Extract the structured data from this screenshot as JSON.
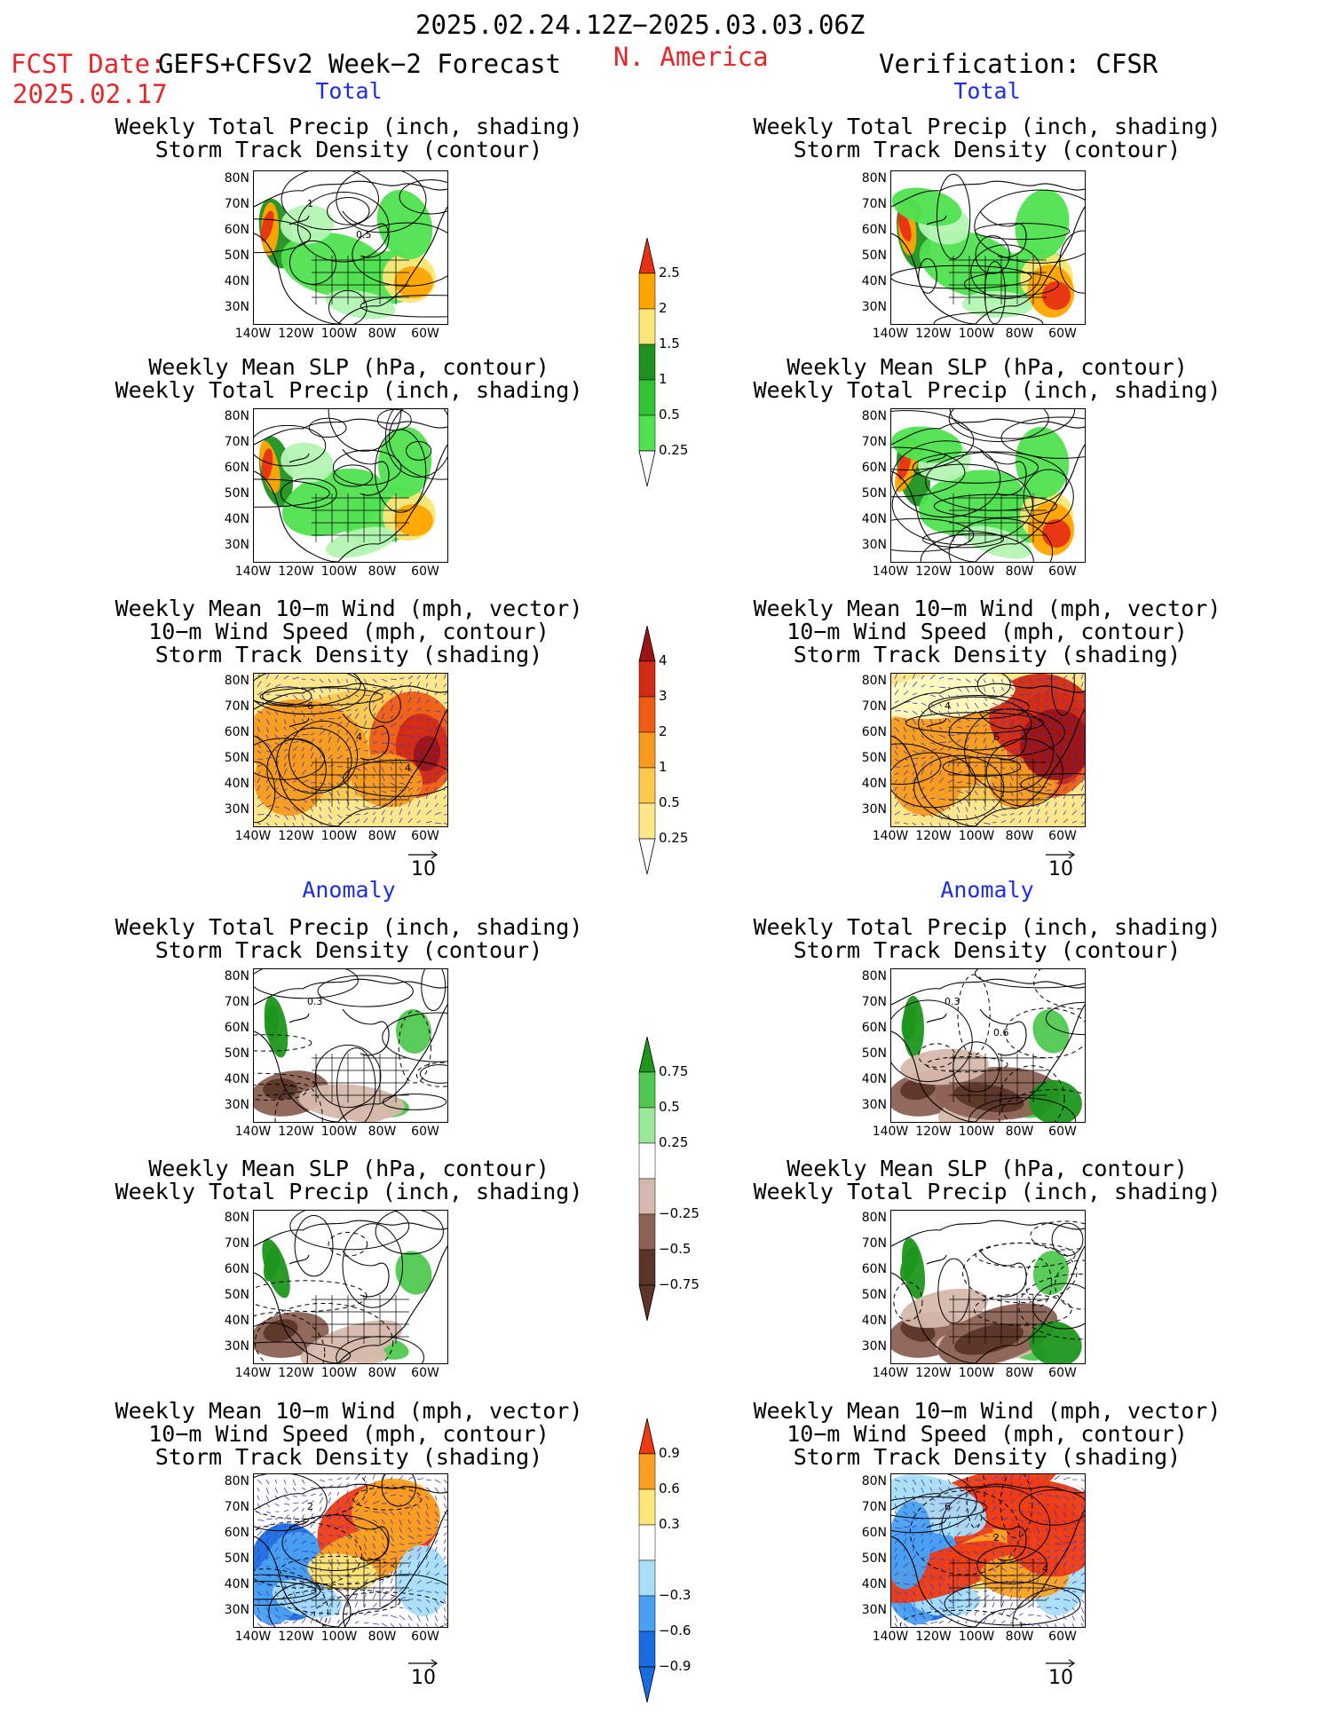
{
  "header": {
    "date_range": "2025.02.24.12Z−2025.03.03.06Z",
    "fcst_date_label": "FCST Date:",
    "fcst_date": "2025.02.17",
    "model": "GEFS+CFSv2 Week−2 Forecast",
    "region": "N. America",
    "verification": "Verification: CFSR"
  },
  "sections": {
    "total": "Total",
    "anomaly": "Anomaly"
  },
  "titles": {
    "precip_track": [
      "Weekly Total Precip (inch, shading)",
      "Storm Track Density (contour)"
    ],
    "slp_precip": [
      "Weekly Mean SLP (hPa, contour)",
      "Weekly Total Precip (inch, shading)"
    ],
    "wind_track": [
      "Weekly Mean 10−m Wind (mph, vector)",
      "10−m Wind Speed (mph, contour)",
      "Storm Track Density (shading)"
    ]
  },
  "axes": {
    "lat_labels": [
      "80N",
      "70N",
      "60N",
      "50N",
      "40N",
      "30N"
    ],
    "lon_labels": [
      "140W",
      "120W",
      "100W",
      "80W",
      "60W"
    ]
  },
  "vector_ref": "10",
  "colors": {
    "precip": [
      "#b4f5b4",
      "#50e150",
      "#32c332",
      "#1e911e",
      "#fae678",
      "#ffa500",
      "#e63214"
    ],
    "track_total": [
      "#fffbc0",
      "#fde78a",
      "#fcc84e",
      "#f79a1e",
      "#ee5c14",
      "#d22a14",
      "#9a1414"
    ],
    "precip_anom": [
      "#5b3628",
      "#8c6254",
      "#d6b8ac",
      "#ffffff",
      "#9ae89a",
      "#50c850",
      "#1e961e"
    ],
    "track_anom": [
      "#1a6ae0",
      "#4aa0f0",
      "#a8def7",
      "#ffffff",
      "#fde77a",
      "#fba020",
      "#ee3a14"
    ]
  },
  "colorbars": [
    {
      "id": "precip_total",
      "labels": [
        "2.5",
        "2",
        "1.5",
        "1",
        "0.5",
        "0.25"
      ]
    },
    {
      "id": "track_total",
      "labels": [
        "4",
        "3",
        "2",
        "1",
        "0.5",
        "0.25"
      ]
    },
    {
      "id": "precip_anom",
      "labels": [
        "0.75",
        "0.5",
        "0.25",
        "−0.25",
        "−0.5",
        "−0.75"
      ]
    },
    {
      "id": "track_anom",
      "labels": [
        "0.9",
        "0.6",
        "0.3",
        "−0.3",
        "−0.6",
        "−0.9"
      ]
    }
  ],
  "contour_labels": {
    "fp1": [
      "1",
      "0.5"
    ],
    "fw1": [
      "6",
      "4",
      "4"
    ],
    "vw1": [
      "4",
      "6"
    ],
    "fp2": [
      "0.3"
    ],
    "vp2": [
      "0.3",
      "0.6"
    ],
    "fw2": [
      "2"
    ],
    "vw2": [
      "6",
      "2",
      "4"
    ],
    "vs2": [
      "10"
    ]
  }
}
